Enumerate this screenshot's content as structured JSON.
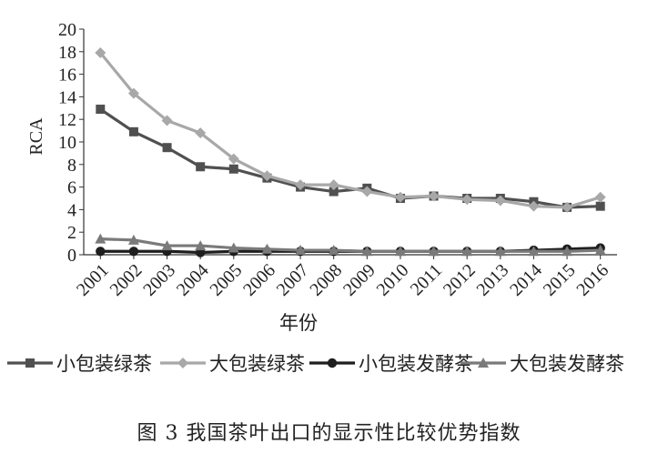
{
  "chart_data": {
    "type": "line",
    "ylabel": "RCA",
    "xlabel": "年份",
    "ylim": [
      0,
      20
    ],
    "yticks": [
      0,
      2,
      4,
      6,
      8,
      10,
      12,
      14,
      16,
      18,
      20
    ],
    "categories": [
      "2001",
      "2002",
      "2003",
      "2004",
      "2005",
      "2006",
      "2007",
      "2008",
      "2009",
      "2010",
      "2011",
      "2012",
      "2013",
      "2014",
      "2015",
      "2016"
    ],
    "legend_position": "bottom",
    "grid": false,
    "series": [
      {
        "name": "小包装绿茶",
        "color": "#505050",
        "marker": "square",
        "values": [
          12.9,
          10.9,
          9.5,
          7.8,
          7.6,
          6.8,
          6.0,
          5.6,
          5.9,
          5.0,
          5.2,
          5.0,
          5.0,
          4.7,
          4.2,
          4.3
        ]
      },
      {
        "name": "大包装绿茶",
        "color": "#a8a8a8",
        "marker": "diamond",
        "values": [
          17.9,
          14.3,
          11.9,
          10.8,
          8.5,
          7.0,
          6.2,
          6.2,
          5.6,
          5.1,
          5.2,
          4.9,
          4.8,
          4.3,
          4.2,
          5.1
        ]
      },
      {
        "name": "小包装发酵茶",
        "color": "#1e1e1e",
        "marker": "circle",
        "values": [
          0.3,
          0.3,
          0.3,
          0.2,
          0.3,
          0.3,
          0.3,
          0.3,
          0.3,
          0.3,
          0.3,
          0.3,
          0.3,
          0.4,
          0.5,
          0.6
        ]
      },
      {
        "name": "大包装发酵茶",
        "color": "#7a7a7a",
        "marker": "triangle",
        "values": [
          1.4,
          1.3,
          0.8,
          0.8,
          0.6,
          0.5,
          0.4,
          0.4,
          0.3,
          0.3,
          0.3,
          0.3,
          0.3,
          0.3,
          0.3,
          0.4
        ]
      }
    ]
  },
  "caption": "图 3  我国茶叶出口的显示性比较优势指数"
}
